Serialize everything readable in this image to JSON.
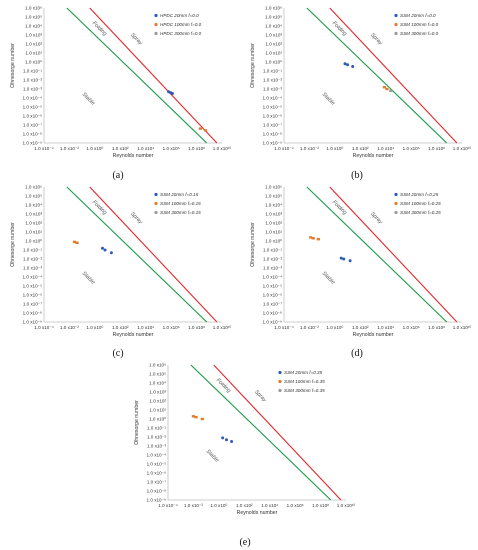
{
  "colors": {
    "red": "#e4262b",
    "green": "#1a9a48",
    "blue": "#2f5bb8",
    "orange": "#e27a2c",
    "gray": "#9a9a9a",
    "axis": "#bfbfbf"
  },
  "y_ticks": [
    "1.0 x10⁶",
    "1.0 x10⁵",
    "1.0 x10⁴",
    "1.0 x10³",
    "1.0 x10²",
    "1.0 x10¹",
    "1.0 x10⁰",
    "1.0 x10⁻¹",
    "1.0 x10⁻²",
    "1.0 x10⁻³",
    "1.0 x10⁻⁴",
    "1.0 x10⁻⁵",
    "1.0 x10⁻⁶",
    "1.0 x10⁻⁷",
    "1.0 x10⁻⁸",
    "1.0 x10⁻⁹"
  ],
  "x_ticks": [
    "1.0 x10⁻⁴",
    "1.0 x10⁻²",
    "1.0 x10⁰",
    "1.0 x10²",
    "1.0 x10⁴",
    "1.0 x10⁶",
    "1.0 x10⁸",
    "1.0 x10¹⁰"
  ],
  "chart_data": [
    {
      "type": "scatter",
      "caption": "(a)",
      "xlabel": "Reynolds number",
      "ylabel": "Ohnesorge number",
      "x_log": true,
      "y_log": true,
      "xlim": [
        -4,
        10
      ],
      "ylim": [
        -9,
        6
      ],
      "regions": [
        "Folding",
        "Spray",
        "Stable"
      ],
      "series": [
        {
          "name": "HPDC 20mm f=0.0",
          "color": "#2f5bb8",
          "points": [
            [
              5.8,
              -3.3
            ],
            [
              5.95,
              -3.4
            ],
            [
              6.1,
              -3.5
            ]
          ]
        },
        {
          "name": "HPDC 100mm f=0.0",
          "color": "#e27a2c",
          "points": [
            [
              8.3,
              -7.4
            ],
            [
              8.7,
              -7.6
            ]
          ]
        },
        {
          "name": "HPDC 300mm f=0.0",
          "color": "#9a9a9a",
          "points": []
        }
      ]
    },
    {
      "type": "scatter",
      "caption": "(b)",
      "xlabel": "Reynolds number",
      "ylabel": "Ohnesorge number",
      "x_log": true,
      "y_log": true,
      "xlim": [
        -4,
        10
      ],
      "ylim": [
        -9,
        6
      ],
      "regions": [
        "Folding",
        "Spray",
        "Stable"
      ],
      "series": [
        {
          "name": "SSM 20mm f=0.0",
          "color": "#2f5bb8",
          "points": [
            [
              0.8,
              -0.2
            ],
            [
              1.0,
              -0.3
            ],
            [
              1.4,
              -0.5
            ]
          ]
        },
        {
          "name": "SSM 100mm f=0.0",
          "color": "#e27a2c",
          "points": [
            [
              3.9,
              -2.8
            ],
            [
              4.1,
              -3.0
            ]
          ]
        },
        {
          "name": "SSM 300mm f=0.0",
          "color": "#9a9a9a",
          "points": [
            [
              4.4,
              -3.2
            ]
          ]
        }
      ]
    },
    {
      "type": "scatter",
      "caption": "(c)",
      "xlabel": "Reynolds number",
      "ylabel": "Ohnesorge number",
      "x_log": true,
      "y_log": true,
      "xlim": [
        -4,
        10
      ],
      "ylim": [
        -9,
        6
      ],
      "regions": [
        "Folding",
        "Spray",
        "Stable"
      ],
      "series": [
        {
          "name": "SSM 20mm f=0.15",
          "color": "#2f5bb8",
          "points": [
            [
              0.6,
              -0.8
            ],
            [
              0.8,
              -1.0
            ],
            [
              1.3,
              -1.3
            ]
          ]
        },
        {
          "name": "SSM 100mm f=0.15",
          "color": "#e27a2c",
          "points": [
            [
              -1.6,
              -0.1
            ],
            [
              -1.4,
              -0.2
            ]
          ]
        },
        {
          "name": "SSM 300mm f=0.15",
          "color": "#9a9a9a",
          "points": []
        }
      ]
    },
    {
      "type": "scatter",
      "caption": "(d)",
      "xlabel": "Reynolds number",
      "ylabel": "Ohnesorge number",
      "x_log": true,
      "y_log": true,
      "xlim": [
        -4,
        10
      ],
      "ylim": [
        -9,
        6
      ],
      "regions": [
        "Folding",
        "Spray",
        "Stable"
      ],
      "series": [
        {
          "name": "SSM 20mm f=0.25",
          "color": "#2f5bb8",
          "points": [
            [
              0.5,
              -1.9
            ],
            [
              0.7,
              -2.0
            ],
            [
              1.2,
              -2.2
            ]
          ]
        },
        {
          "name": "SSM 100mm f=0.25",
          "color": "#e27a2c",
          "points": [
            [
              -1.9,
              0.4
            ],
            [
              -1.7,
              0.3
            ],
            [
              -1.3,
              0.2
            ]
          ]
        },
        {
          "name": "SSM 300mm f=0.25",
          "color": "#9a9a9a",
          "points": []
        }
      ]
    },
    {
      "type": "scatter",
      "caption": "(e)",
      "xlabel": "Reynolds number",
      "ylabel": "Ohnesorge number",
      "x_log": true,
      "y_log": true,
      "xlim": [
        -4,
        10
      ],
      "ylim": [
        -9,
        6
      ],
      "regions": [
        "Folding",
        "Spray",
        "Stable"
      ],
      "series": [
        {
          "name": "SSM 20mm f=0.35",
          "color": "#2f5bb8",
          "points": [
            [
              0.3,
              -2.1
            ],
            [
              0.6,
              -2.3
            ],
            [
              1.0,
              -2.5
            ]
          ]
        },
        {
          "name": "SSM 100mm f=0.35",
          "color": "#e27a2c",
          "points": [
            [
              -2.0,
              0.3
            ],
            [
              -1.8,
              0.2
            ],
            [
              -1.3,
              0.0
            ]
          ]
        },
        {
          "name": "SSM 300mm f=0.35",
          "color": "#9a9a9a",
          "points": []
        }
      ]
    }
  ]
}
